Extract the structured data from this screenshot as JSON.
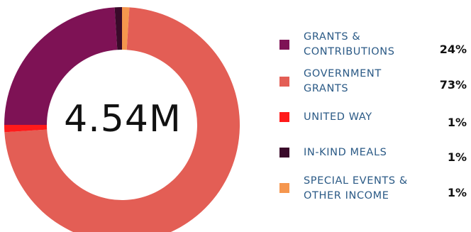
{
  "chart_data": {
    "type": "pie",
    "center_label": "4.54M",
    "slices": [
      {
        "label": "GRANTS & CONTRIBUTIONS",
        "value": 24,
        "value_label": "24%",
        "color": "#7e1255"
      },
      {
        "label": "GOVERNMENT GRANTS",
        "value": 73,
        "value_label": "73%",
        "color": "#e35e55"
      },
      {
        "label": "UNITED WAY",
        "value": 1,
        "value_label": "1%",
        "color": "#ff1a1a"
      },
      {
        "label": "IN-KIND MEALS",
        "value": 1,
        "value_label": "1%",
        "color": "#3a0a2a"
      },
      {
        "label": "SPECIAL EVENTS & OTHER INCOME",
        "value": 1,
        "value_label": "1%",
        "color": "#f5964e"
      }
    ],
    "legend": [
      {
        "lines": [
          "GRANTS &",
          "CONTRIBUTIONS"
        ],
        "percent": "24%",
        "color": "#7e1255"
      },
      {
        "lines": [
          "GOVERNMENT",
          "GRANTS"
        ],
        "percent": "73%",
        "color": "#e35e55"
      },
      {
        "lines": [
          "UNITED WAY"
        ],
        "percent": "1%",
        "color": "#ff1a1a"
      },
      {
        "lines": [
          "IN-KIND MEALS"
        ],
        "percent": "1%",
        "color": "#3a0a2a"
      },
      {
        "lines": [
          "SPECIAL EVENTS &",
          "OTHER INCOME"
        ],
        "percent": "1%",
        "color": "#f5964e"
      }
    ],
    "legend_position": "right"
  }
}
